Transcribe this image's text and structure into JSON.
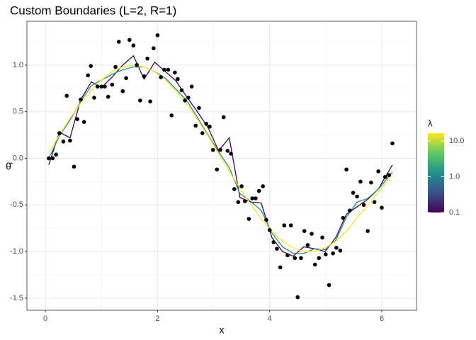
{
  "chart_data": {
    "type": "scatter",
    "title": "Custom Boundaries (L=2, R=1)",
    "x_label": "x",
    "y_label": "θ̂",
    "xlim": [
      -0.33,
      6.62
    ],
    "ylim": [
      -1.63,
      1.47
    ],
    "xticks": [
      0,
      2,
      4,
      6
    ],
    "xminor": [
      1,
      3,
      5
    ],
    "yticks": [
      {
        "value": -1.5,
        "label": "-1.5"
      },
      {
        "value": -1,
        "label": "-1.0"
      },
      {
        "value": -0.5,
        "label": "-0.5"
      },
      {
        "value": 0,
        "label": "0.0"
      },
      {
        "value": 0.5,
        "label": "0.5"
      },
      {
        "value": 1,
        "label": "1.0"
      }
    ],
    "yminor": [
      -1.25,
      -0.75,
      -0.25,
      0.25,
      0.75,
      1.25
    ],
    "grid": true,
    "points": {
      "color": "#000000",
      "x": [
        0.06,
        0.13,
        0.19,
        0.25,
        0.32,
        0.38,
        0.44,
        0.51,
        0.57,
        0.63,
        0.69,
        0.76,
        0.81,
        0.87,
        0.93,
        1.0,
        1.06,
        1.12,
        1.19,
        1.25,
        1.31,
        1.38,
        1.44,
        1.5,
        1.57,
        1.63,
        1.69,
        1.76,
        1.82,
        1.87,
        1.93,
        2.0,
        2.06,
        2.12,
        2.19,
        2.25,
        2.31,
        2.36,
        2.43,
        2.49,
        2.55,
        2.61,
        2.68,
        2.74,
        2.8,
        2.87,
        2.93,
        2.99,
        3.06,
        3.12,
        3.18,
        3.25,
        3.31,
        3.37,
        3.44,
        3.5,
        3.56,
        3.63,
        3.69,
        3.75,
        3.81,
        3.88,
        3.94,
        4.0,
        4.07,
        4.13,
        4.19,
        4.26,
        4.32,
        4.38,
        4.45,
        4.5,
        4.56,
        4.62,
        4.68,
        4.75,
        4.81,
        4.88,
        4.94,
        5.0,
        5.06,
        5.13,
        5.19,
        5.26,
        5.31,
        5.37,
        5.43,
        5.49,
        5.56,
        5.62,
        5.68,
        5.75,
        5.81,
        5.87,
        5.94,
        6.0,
        6.06,
        6.13,
        6.19
      ],
      "values": [
        0.0,
        0.0,
        0.04,
        0.27,
        0.18,
        0.67,
        0.19,
        -0.09,
        0.42,
        0.63,
        0.39,
        0.89,
        0.99,
        0.65,
        0.77,
        0.77,
        0.77,
        0.66,
        0.79,
        0.98,
        1.25,
        0.72,
        0.86,
        1.27,
        1.21,
        1.0,
        0.62,
        0.88,
        1.07,
        0.61,
        1.18,
        1.32,
        0.87,
        0.95,
        0.95,
        0.46,
        0.92,
        0.85,
        0.73,
        0.62,
        0.65,
        0.77,
        0.35,
        0.54,
        0.27,
        0.37,
        0.34,
        0.09,
        -0.12,
        0.09,
        0.44,
        0.08,
        0.05,
        -0.33,
        -0.47,
        -0.3,
        -0.46,
        -0.65,
        -0.43,
        -0.43,
        -0.35,
        -0.3,
        -0.66,
        -0.77,
        -0.9,
        -0.97,
        -1.17,
        -0.72,
        -1.04,
        -0.72,
        -1.07,
        -1.49,
        -1.07,
        -0.78,
        -0.93,
        -0.81,
        -1.14,
        -1.07,
        -0.85,
        -1.03,
        -1.36,
        -1.02,
        -0.96,
        -0.99,
        -0.64,
        -0.12,
        -0.56,
        -0.37,
        -0.41,
        -0.25,
        -0.5,
        -0.78,
        -0.26,
        -0.47,
        -0.14,
        -0.53,
        -0.2,
        -0.18,
        0.16
      ]
    },
    "lines": [
      {
        "color": "#440154",
        "x": [
          0.06,
          0.25,
          0.44,
          0.63,
          0.82,
          1.0,
          1.19,
          1.38,
          1.57,
          1.76,
          1.95,
          2.14,
          2.33,
          2.52,
          2.71,
          2.9,
          3.09,
          3.28,
          3.47,
          3.66,
          3.85,
          4.04,
          4.23,
          4.42,
          4.61,
          4.8,
          4.99,
          5.18,
          5.37,
          5.56,
          5.75,
          5.94,
          6.19
        ],
        "values": [
          -0.07,
          0.28,
          0.22,
          0.63,
          0.82,
          0.76,
          0.87,
          1.0,
          1.1,
          0.85,
          1.03,
          0.93,
          0.83,
          0.66,
          0.5,
          0.33,
          0.08,
          0.22,
          -0.42,
          -0.47,
          -0.48,
          -0.85,
          -1.0,
          -1.05,
          -0.95,
          -0.97,
          -1.0,
          -0.85,
          -0.6,
          -0.52,
          -0.44,
          -0.33,
          -0.07
        ]
      },
      {
        "color": "#21908C",
        "x": [
          0.06,
          0.25,
          0.44,
          0.63,
          0.82,
          1.0,
          1.19,
          1.38,
          1.57,
          1.76,
          1.95,
          2.14,
          2.33,
          2.52,
          2.71,
          2.9,
          3.09,
          3.28,
          3.47,
          3.66,
          3.85,
          4.04,
          4.23,
          4.42,
          4.61,
          4.8,
          4.99,
          5.18,
          5.37,
          5.56,
          5.75,
          5.94,
          6.19
        ],
        "values": [
          0.0,
          0.24,
          0.41,
          0.61,
          0.78,
          0.84,
          0.9,
          0.95,
          0.98,
          0.98,
          0.93,
          0.86,
          0.74,
          0.62,
          0.44,
          0.25,
          0.07,
          -0.1,
          -0.38,
          -0.46,
          -0.56,
          -0.8,
          -0.95,
          -1.02,
          -1.02,
          -0.97,
          -0.98,
          -0.88,
          -0.63,
          -0.47,
          -0.43,
          -0.33,
          -0.15
        ]
      },
      {
        "color": "#FDE725",
        "x": [
          0.06,
          0.25,
          0.44,
          0.63,
          0.82,
          1.0,
          1.19,
          1.38,
          1.57,
          1.76,
          1.95,
          2.14,
          2.33,
          2.52,
          2.71,
          2.9,
          3.09,
          3.28,
          3.47,
          3.66,
          3.85,
          4.04,
          4.23,
          4.42,
          4.61,
          4.8,
          4.99,
          5.18,
          5.37,
          5.56,
          5.75,
          5.94,
          6.19
        ],
        "values": [
          0.06,
          0.25,
          0.43,
          0.59,
          0.73,
          0.84,
          0.93,
          0.98,
          1.0,
          0.98,
          0.93,
          0.84,
          0.72,
          0.58,
          0.42,
          0.24,
          0.05,
          -0.14,
          -0.32,
          -0.49,
          -0.65,
          -0.78,
          -0.89,
          -0.96,
          -1.0,
          -1.0,
          -0.96,
          -0.89,
          -0.78,
          -0.64,
          -0.51,
          -0.36,
          -0.17
        ]
      }
    ],
    "legend": {
      "title": "λ",
      "scale": "log",
      "lim": [
        0.1,
        16.5
      ],
      "colors": [
        "#440154",
        "#3B528B",
        "#21908C",
        "#5DC863",
        "#FDE725"
      ],
      "ticks": [
        0.1,
        {
          "value": 1,
          "label": "1.0"
        },
        {
          "value": 10,
          "label": "10.0"
        }
      ]
    }
  }
}
